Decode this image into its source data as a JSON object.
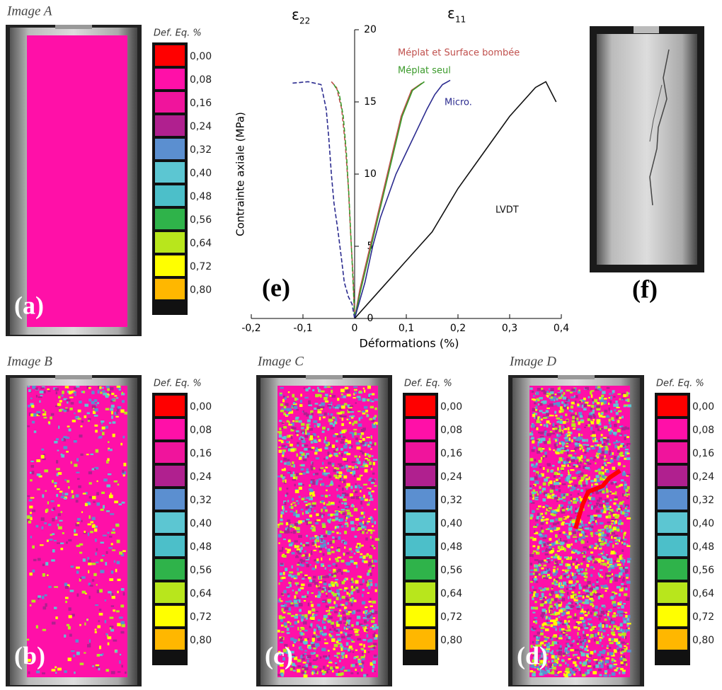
{
  "panels": [
    {
      "caption": "Image A",
      "label": "(a)",
      "speckle": 0
    },
    {
      "caption": "Image B",
      "label": "(b)",
      "speckle": 1
    },
    {
      "caption": "Image C",
      "label": "(c)",
      "speckle": 2
    },
    {
      "caption": "Image D",
      "label": "(d)",
      "speckle": 3
    }
  ],
  "colorbar": {
    "title": "Def. Eq. %",
    "levels": [
      {
        "label": "0,00",
        "color": "#ff0000"
      },
      {
        "label": "0,08",
        "color": "#ff10a8"
      },
      {
        "label": "0,16",
        "color": "#f0149c"
      },
      {
        "label": "0,24",
        "color": "#b0208f"
      },
      {
        "label": "0,32",
        "color": "#5b8fd0"
      },
      {
        "label": "0,40",
        "color": "#5cc6d2"
      },
      {
        "label": "0,48",
        "color": "#4cbfc9"
      },
      {
        "label": "0,56",
        "color": "#2fb34a"
      },
      {
        "label": "0,64",
        "color": "#b8e61c"
      },
      {
        "label": "0,72",
        "color": "#ffff00"
      },
      {
        "label": "0,80",
        "color": "#ffb700"
      }
    ]
  },
  "chart_data": {
    "type": "line",
    "panel_label": "(e)",
    "xlabel": "Déformations (%)",
    "ylabel": "Contrainte axiale (MPa)",
    "strain_labels": [
      {
        "symbol": "ε",
        "subscript": "22"
      },
      {
        "symbol": "ε",
        "subscript": "11"
      }
    ],
    "xlim": [
      -0.2,
      0.4
    ],
    "xticks": [
      {
        "value": -0.2,
        "label": "-0,2"
      },
      {
        "value": -0.1,
        "label": "-0,1"
      },
      0,
      {
        "value": 0.1,
        "label": "0,1"
      },
      {
        "value": 0.2,
        "label": "0,2"
      },
      {
        "value": 0.3,
        "label": "0,3"
      },
      {
        "value": 0.4,
        "label": "0,4"
      }
    ],
    "ylim": [
      0,
      20
    ],
    "yticks": [
      0,
      5,
      10,
      15,
      20
    ],
    "series": [
      {
        "name": "Méplat et Surface bombée",
        "color": "#c0504d",
        "x": [
          -0.045,
          -0.035,
          -0.025,
          -0.018,
          -0.012,
          -0.008,
          -0.003,
          0,
          null,
          0,
          0.01,
          0.03,
          0.05,
          0.07,
          0.09,
          0.11,
          0.13
        ],
        "values": [
          16.4,
          16,
          14.5,
          12,
          9,
          6,
          3,
          0,
          null,
          0,
          2,
          5,
          8,
          11,
          14,
          15.8,
          16.3
        ]
      },
      {
        "name": "Méplat seul",
        "color": "#3a9a2a",
        "x": [
          -0.04,
          -0.03,
          -0.022,
          -0.016,
          -0.011,
          -0.007,
          -0.003,
          0,
          null,
          0,
          0.012,
          0.032,
          0.052,
          0.072,
          0.092,
          0.112,
          0.135
        ],
        "values": [
          16.2,
          15.6,
          14,
          11.5,
          8.5,
          5.5,
          2.5,
          0,
          null,
          0,
          2,
          5,
          8,
          11,
          14,
          15.8,
          16.4
        ]
      },
      {
        "name": "Micro.",
        "color": "#2b2b8f",
        "x": [
          -0.12,
          -0.09,
          -0.065,
          -0.055,
          -0.05,
          -0.045,
          -0.04,
          -0.032,
          -0.025,
          -0.02,
          -0.012,
          -0.005,
          0,
          null,
          0,
          0.02,
          0.035,
          0.05,
          0.065,
          0.08,
          0.1,
          0.12,
          0.14,
          0.155,
          0.17,
          0.185
        ],
        "values": [
          16.3,
          16.4,
          16.2,
          14.5,
          12.5,
          10,
          8,
          6,
          4,
          2.5,
          1.5,
          1,
          0,
          null,
          0,
          2.5,
          5,
          7,
          8.5,
          10,
          11.5,
          13,
          14.5,
          15.5,
          16.2,
          16.5
        ]
      },
      {
        "name": "LVDT",
        "color": "#111111",
        "x": [
          0,
          0.05,
          0.1,
          0.15,
          0.2,
          0.25,
          0.3,
          0.35,
          0.37,
          0.39
        ],
        "values": [
          0,
          2,
          4,
          6,
          9,
          11.5,
          14,
          16,
          16.4,
          15
        ]
      }
    ]
  },
  "photo": {
    "label": "(f)"
  }
}
